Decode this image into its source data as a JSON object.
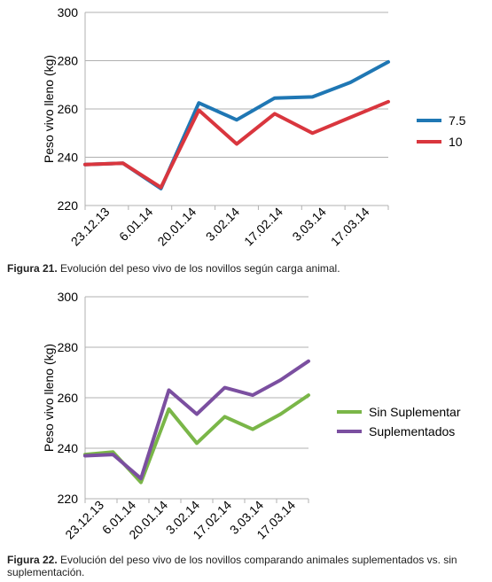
{
  "chart_data": [
    {
      "type": "line",
      "ylabel": "Peso vivo lleno (kg)",
      "xlabel": "",
      "title": "",
      "ylim": [
        220,
        300
      ],
      "yticks": [
        "220",
        "240",
        "260",
        "280",
        "300"
      ],
      "x_tick_labels": [
        "23.12.13",
        "6.01.14",
        "20.01.14",
        "3.02.14",
        "17.02.14",
        "3.03.14",
        "17.03.14"
      ],
      "legend_position": "right",
      "grid": "horizontal",
      "series": [
        {
          "name": "7.5",
          "color": "#1f77b4",
          "values": [
            237,
            237.5,
            227,
            262.5,
            255.5,
            264.5,
            265,
            271,
            279.5
          ]
        },
        {
          "name": "10",
          "color": "#d9363e",
          "values": [
            237,
            237.5,
            227.5,
            259.5,
            245.5,
            258,
            250,
            256.5,
            263
          ]
        }
      ]
    },
    {
      "type": "line",
      "ylabel": "Peso vivo lleno (kg)",
      "xlabel": "",
      "title": "",
      "ylim": [
        220,
        300
      ],
      "yticks": [
        "220",
        "240",
        "260",
        "280",
        "300"
      ],
      "x_tick_labels": [
        "23.12.13",
        "6.01.14",
        "20.01.14",
        "3.02.14",
        "17.02.14",
        "3.03.14",
        "17.03.14"
      ],
      "legend_position": "right",
      "grid": "horizontal",
      "series": [
        {
          "name": "Sin Suplementar",
          "color": "#7ab648",
          "values": [
            237.5,
            238.5,
            226.5,
            255.5,
            242,
            252.5,
            247.5,
            253.5,
            261
          ]
        },
        {
          "name": "Suplementados",
          "color": "#7b4fa0",
          "values": [
            237,
            237.5,
            228,
            263,
            253.5,
            264,
            261,
            267,
            274.5
          ]
        }
      ]
    }
  ],
  "captions": [
    {
      "label": "Figura 21.",
      "text": " Evolución del peso vivo de los novillos según carga animal."
    },
    {
      "label": "Figura 22.",
      "text": " Evolución del peso vivo de los novillos comparando animales suplementados vs. sin suplementación."
    }
  ]
}
